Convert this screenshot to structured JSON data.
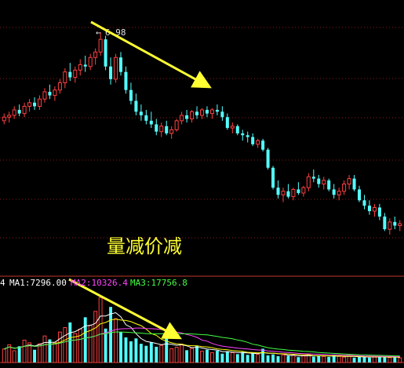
{
  "chart_data": [
    {
      "type": "candlestick",
      "title": "",
      "peak_label": "6.98",
      "annotation": "量减价减",
      "arrow_color": "#ffff33",
      "up_color": "#ff4040",
      "down_color": "#54ffff",
      "candles": [
        [
          6.0,
          6.08,
          5.96,
          6.04
        ],
        [
          6.04,
          6.1,
          5.98,
          6.06
        ],
        [
          6.06,
          6.16,
          6.02,
          6.12
        ],
        [
          6.12,
          6.18,
          6.05,
          6.08
        ],
        [
          6.08,
          6.2,
          6.04,
          6.16
        ],
        [
          6.16,
          6.24,
          6.1,
          6.2
        ],
        [
          6.2,
          6.26,
          6.12,
          6.16
        ],
        [
          6.16,
          6.28,
          6.12,
          6.24
        ],
        [
          6.24,
          6.36,
          6.2,
          6.32
        ],
        [
          6.32,
          6.4,
          6.24,
          6.28
        ],
        [
          6.28,
          6.38,
          6.22,
          6.34
        ],
        [
          6.34,
          6.46,
          6.3,
          6.42
        ],
        [
          6.42,
          6.58,
          6.36,
          6.54
        ],
        [
          6.54,
          6.64,
          6.44,
          6.48
        ],
        [
          6.48,
          6.6,
          6.42,
          6.56
        ],
        [
          6.56,
          6.68,
          6.5,
          6.62
        ],
        [
          6.62,
          6.72,
          6.54,
          6.6
        ],
        [
          6.6,
          6.74,
          6.56,
          6.7
        ],
        [
          6.7,
          6.8,
          6.62,
          6.76
        ],
        [
          6.76,
          6.98,
          6.72,
          6.9
        ],
        [
          6.9,
          6.94,
          6.56,
          6.6
        ],
        [
          6.6,
          6.7,
          6.4,
          6.46
        ],
        [
          6.46,
          6.74,
          6.42,
          6.7
        ],
        [
          6.7,
          6.76,
          6.5,
          6.54
        ],
        [
          6.54,
          6.6,
          6.3,
          6.34
        ],
        [
          6.34,
          6.42,
          6.18,
          6.22
        ],
        [
          6.22,
          6.3,
          6.06,
          6.1
        ],
        [
          6.1,
          6.18,
          6.0,
          6.06
        ],
        [
          6.06,
          6.12,
          5.96,
          6.0
        ],
        [
          6.0,
          6.1,
          5.92,
          5.96
        ],
        [
          5.96,
          6.02,
          5.84,
          5.88
        ],
        [
          5.88,
          5.98,
          5.82,
          5.94
        ],
        [
          5.94,
          6.0,
          5.84,
          5.86
        ],
        [
          5.86,
          5.94,
          5.8,
          5.9
        ],
        [
          5.9,
          6.02,
          5.88,
          6.0
        ],
        [
          6.0,
          6.1,
          5.96,
          6.06
        ],
        [
          6.06,
          6.12,
          5.98,
          6.02
        ],
        [
          6.02,
          6.12,
          5.98,
          6.1
        ],
        [
          6.1,
          6.16,
          6.02,
          6.06
        ],
        [
          6.06,
          6.14,
          6.02,
          6.12
        ],
        [
          6.12,
          6.16,
          6.04,
          6.08
        ],
        [
          6.08,
          6.14,
          6.02,
          6.12
        ],
        [
          6.12,
          6.18,
          6.06,
          6.1
        ],
        [
          6.1,
          6.16,
          6.0,
          6.04
        ],
        [
          6.04,
          6.08,
          5.9,
          5.92
        ],
        [
          5.92,
          5.98,
          5.86,
          5.94
        ],
        [
          5.94,
          5.96,
          5.84,
          5.86
        ],
        [
          5.86,
          5.9,
          5.78,
          5.84
        ],
        [
          5.84,
          5.88,
          5.76,
          5.82
        ],
        [
          5.82,
          5.86,
          5.72,
          5.74
        ],
        [
          5.74,
          5.8,
          5.7,
          5.78
        ],
        [
          5.78,
          5.8,
          5.66,
          5.68
        ],
        [
          5.68,
          5.7,
          5.46,
          5.48
        ],
        [
          5.48,
          5.5,
          5.24,
          5.26
        ],
        [
          5.26,
          5.34,
          5.14,
          5.18
        ],
        [
          5.18,
          5.26,
          5.1,
          5.22
        ],
        [
          5.22,
          5.3,
          5.14,
          5.16
        ],
        [
          5.16,
          5.26,
          5.12,
          5.24
        ],
        [
          5.24,
          5.32,
          5.18,
          5.2
        ],
        [
          5.2,
          5.28,
          5.16,
          5.26
        ],
        [
          5.26,
          5.42,
          5.22,
          5.38
        ],
        [
          5.38,
          5.46,
          5.32,
          5.36
        ],
        [
          5.36,
          5.4,
          5.26,
          5.3
        ],
        [
          5.3,
          5.38,
          5.24,
          5.34
        ],
        [
          5.34,
          5.36,
          5.22,
          5.24
        ],
        [
          5.24,
          5.3,
          5.14,
          5.18
        ],
        [
          5.18,
          5.26,
          5.12,
          5.22
        ],
        [
          5.22,
          5.34,
          5.18,
          5.3
        ],
        [
          5.3,
          5.4,
          5.24,
          5.36
        ],
        [
          5.36,
          5.4,
          5.22,
          5.24
        ],
        [
          5.24,
          5.28,
          5.1,
          5.12
        ],
        [
          5.12,
          5.18,
          5.02,
          5.06
        ],
        [
          5.06,
          5.12,
          4.96,
          5.0
        ],
        [
          5.0,
          5.08,
          4.94,
          5.04
        ],
        [
          5.04,
          5.08,
          4.9,
          4.94
        ],
        [
          4.94,
          4.98,
          4.78,
          4.8
        ],
        [
          4.8,
          4.92,
          4.74,
          4.88
        ],
        [
          4.88,
          4.94,
          4.8,
          4.84
        ],
        [
          4.84,
          4.9,
          4.78,
          4.86
        ]
      ]
    },
    {
      "type": "bar",
      "title": "",
      "ma_labels": [
        {
          "name": "MA1",
          "value": "7296.00",
          "color": "#ffffff"
        },
        {
          "name": "MA2",
          "value": "10326.4",
          "color": "#ff44ff"
        },
        {
          "name": "MA3",
          "value": "17756.8",
          "color": "#44ff44"
        }
      ],
      "ma_colors": [
        "#ffffff",
        "#ffff00",
        "#ff44ff",
        "#44ff44"
      ],
      "volumes": [
        5500,
        7200,
        4800,
        6600,
        9100,
        8000,
        5200,
        7600,
        10800,
        9400,
        8200,
        12400,
        14200,
        16300,
        11800,
        13600,
        18400,
        15200,
        20800,
        26400,
        13800,
        22600,
        17800,
        12400,
        10200,
        8600,
        9800,
        7600,
        6800,
        8200,
        6400,
        7000,
        9800,
        5600,
        6200,
        7400,
        5000,
        5800,
        6800,
        4600,
        5200,
        4000,
        4800,
        3600,
        4600,
        4000,
        3400,
        4300,
        3100,
        3900,
        3300,
        5600,
        2900,
        3300,
        2600,
        3100,
        2700,
        3000,
        2200,
        2700,
        3400,
        2400,
        2800,
        2500,
        2300,
        3000,
        2500,
        2200,
        2600,
        2000,
        2400,
        2200,
        2000,
        2500,
        2100,
        2300,
        2000,
        2200,
        1900
      ],
      "ylim": [
        0,
        30000
      ]
    }
  ]
}
